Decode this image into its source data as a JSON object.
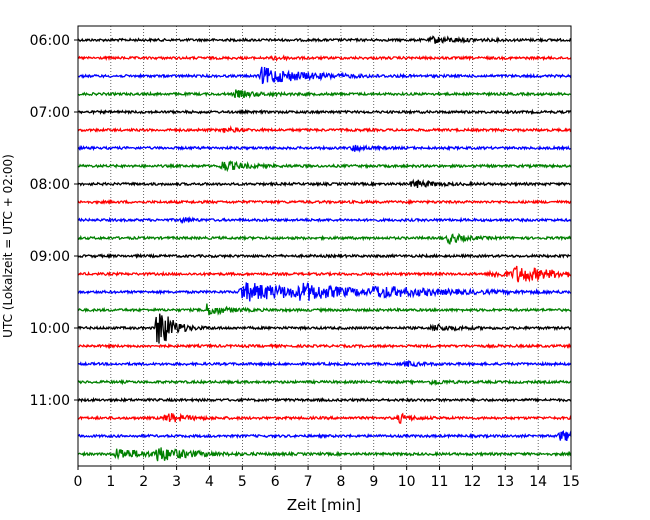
{
  "chart_data": {
    "type": "line",
    "title": "",
    "xlabel": "Zeit  [min]",
    "ylabel": "UTC (Lokalzeit = UTC + 02:00)",
    "xlim": [
      0,
      15
    ],
    "x_ticks": [
      "0",
      "1",
      "2",
      "3",
      "4",
      "5",
      "6",
      "7",
      "8",
      "9",
      "10",
      "11",
      "12",
      "13",
      "14",
      "15"
    ],
    "y_ticks": [
      "06:00",
      "07:00",
      "08:00",
      "09:00",
      "10:00",
      "11:00"
    ],
    "grid": "vertical-dotted",
    "trace_interval_min": 15,
    "colors_cycle": [
      "#000000",
      "#ff0000",
      "#0000ff",
      "#008000"
    ],
    "series": [
      {
        "start": "06:00",
        "color": "#000000",
        "events": [
          {
            "t": 10.8,
            "amp": 0.35,
            "dur": 0.8
          }
        ]
      },
      {
        "start": "06:15",
        "color": "#ff0000",
        "events": [
          {
            "t": 6.0,
            "amp": 0.25,
            "dur": 0.3
          }
        ]
      },
      {
        "start": "06:30",
        "color": "#0000ff",
        "events": [
          {
            "t": 5.6,
            "amp": 1.0,
            "dur": 1.2
          }
        ]
      },
      {
        "start": "06:45",
        "color": "#008000",
        "events": [
          {
            "t": 4.8,
            "amp": 0.4,
            "dur": 0.6
          }
        ]
      },
      {
        "start": "07:00",
        "color": "#000000",
        "events": []
      },
      {
        "start": "07:15",
        "color": "#ff0000",
        "events": [
          {
            "t": 4.5,
            "amp": 0.3,
            "dur": 0.3
          }
        ]
      },
      {
        "start": "07:30",
        "color": "#0000ff",
        "events": [
          {
            "t": 8.4,
            "amp": 0.4,
            "dur": 0.3
          }
        ]
      },
      {
        "start": "07:45",
        "color": "#008000",
        "events": [
          {
            "t": 4.4,
            "amp": 0.6,
            "dur": 0.6
          }
        ]
      },
      {
        "start": "08:00",
        "color": "#000000",
        "events": [
          {
            "t": 10.2,
            "amp": 0.5,
            "dur": 0.5
          }
        ]
      },
      {
        "start": "08:15",
        "color": "#ff0000",
        "events": []
      },
      {
        "start": "08:30",
        "color": "#0000ff",
        "events": [
          {
            "t": 3.2,
            "amp": 0.35,
            "dur": 0.2
          }
        ]
      },
      {
        "start": "08:45",
        "color": "#008000",
        "events": [
          {
            "t": 11.3,
            "amp": 0.6,
            "dur": 0.4
          }
        ]
      },
      {
        "start": "09:00",
        "color": "#000000",
        "events": []
      },
      {
        "start": "09:15",
        "color": "#ff0000",
        "events": [
          {
            "t": 12.6,
            "amp": 0.4,
            "dur": 0.6
          },
          {
            "t": 13.3,
            "amp": 0.9,
            "dur": 1.2
          }
        ]
      },
      {
        "start": "09:30",
        "color": "#0000ff",
        "events": [
          {
            "t": 5.0,
            "amp": 1.1,
            "dur": 2.2
          },
          {
            "t": 6.8,
            "amp": 0.7,
            "dur": 0.9
          },
          {
            "t": 9.0,
            "amp": 0.5,
            "dur": 1.8
          }
        ]
      },
      {
        "start": "09:45",
        "color": "#008000",
        "events": [
          {
            "t": 3.9,
            "amp": 0.7,
            "dur": 0.5
          }
        ]
      },
      {
        "start": "10:00",
        "color": "#000000",
        "events": [
          {
            "t": 2.45,
            "amp": 3.0,
            "dur": 0.35
          },
          {
            "t": 10.8,
            "amp": 0.4,
            "dur": 0.6
          }
        ]
      },
      {
        "start": "10:15",
        "color": "#ff0000",
        "events": []
      },
      {
        "start": "10:30",
        "color": "#0000ff",
        "events": [
          {
            "t": 10.0,
            "amp": 0.3,
            "dur": 0.3
          }
        ]
      },
      {
        "start": "10:45",
        "color": "#008000",
        "events": [
          {
            "t": 10.8,
            "amp": 0.3,
            "dur": 0.3
          }
        ]
      },
      {
        "start": "11:00",
        "color": "#000000",
        "events": []
      },
      {
        "start": "11:15",
        "color": "#ff0000",
        "events": [
          {
            "t": 2.7,
            "amp": 0.6,
            "dur": 0.5
          },
          {
            "t": 9.8,
            "amp": 0.5,
            "dur": 0.3
          }
        ]
      },
      {
        "start": "11:30",
        "color": "#0000ff",
        "events": [
          {
            "t": 14.7,
            "amp": 0.6,
            "dur": 0.6
          }
        ]
      },
      {
        "start": "11:45",
        "color": "#008000",
        "events": [
          {
            "t": 1.2,
            "amp": 0.7,
            "dur": 0.7
          },
          {
            "t": 2.4,
            "amp": 0.8,
            "dur": 0.9
          }
        ]
      }
    ]
  }
}
